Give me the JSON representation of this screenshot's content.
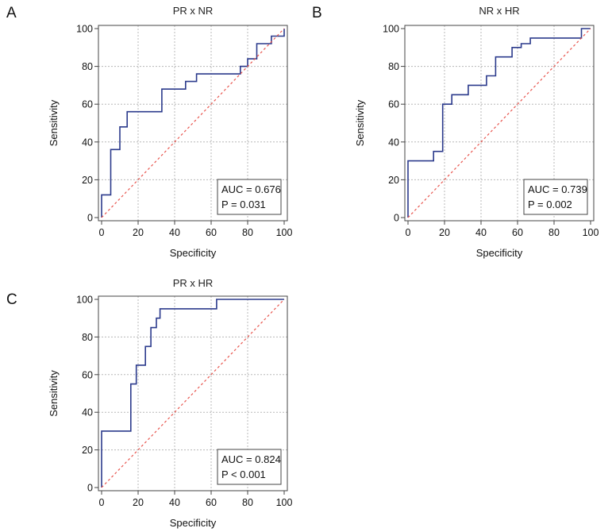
{
  "chart_data": [
    {
      "panel": "A",
      "type": "line",
      "title": "PR x NR",
      "xlabel": "Specificity",
      "ylabel": "Sensitivity",
      "xlim": [
        0,
        100
      ],
      "ylim": [
        0,
        100
      ],
      "xticks": [
        "0",
        "20",
        "40",
        "60",
        "80",
        "100"
      ],
      "yticks": [
        "0",
        "20",
        "40",
        "60",
        "80",
        "100"
      ],
      "grid": true,
      "series": [
        {
          "type": "step",
          "x": [
            0,
            0,
            5,
            5,
            10,
            10,
            14,
            14,
            33,
            33,
            46,
            46,
            52,
            52,
            76,
            76,
            80,
            80,
            85,
            85,
            93,
            93,
            100,
            100
          ],
          "y": [
            0,
            12,
            12,
            36,
            36,
            48,
            48,
            56,
            56,
            68,
            68,
            72,
            72,
            76,
            76,
            80,
            80,
            84,
            84,
            92,
            92,
            96,
            96,
            100
          ]
        },
        {
          "type": "reference",
          "x": [
            0,
            100
          ],
          "y": [
            0,
            100
          ]
        }
      ],
      "annotation": {
        "auc": "AUC = 0.676",
        "p": "P = 0.031"
      }
    },
    {
      "panel": "B",
      "type": "line",
      "title": "NR x HR",
      "xlabel": "Specificity",
      "ylabel": "Sensitivity",
      "xlim": [
        0,
        100
      ],
      "ylim": [
        0,
        100
      ],
      "xticks": [
        "0",
        "20",
        "40",
        "60",
        "80",
        "100"
      ],
      "yticks": [
        "0",
        "20",
        "40",
        "60",
        "80",
        "100"
      ],
      "grid": true,
      "series": [
        {
          "type": "step",
          "x": [
            0,
            0,
            14,
            14,
            19,
            19,
            24,
            24,
            33,
            33,
            43,
            43,
            48,
            48,
            57,
            57,
            62,
            62,
            67,
            67,
            95,
            95,
            100
          ],
          "y": [
            0,
            30,
            30,
            35,
            35,
            60,
            60,
            65,
            65,
            70,
            70,
            75,
            75,
            85,
            85,
            90,
            90,
            92,
            92,
            95,
            95,
            100,
            100
          ]
        },
        {
          "type": "reference",
          "x": [
            0,
            100
          ],
          "y": [
            0,
            100
          ]
        }
      ],
      "annotation": {
        "auc": "AUC = 0.739",
        "p": "P = 0.002"
      }
    },
    {
      "panel": "C",
      "type": "line",
      "title": "PR x HR",
      "xlabel": "Specificity",
      "ylabel": "Sensitivity",
      "xlim": [
        0,
        100
      ],
      "ylim": [
        0,
        100
      ],
      "xticks": [
        "0",
        "20",
        "40",
        "60",
        "80",
        "100"
      ],
      "yticks": [
        "0",
        "20",
        "40",
        "60",
        "80",
        "100"
      ],
      "grid": true,
      "series": [
        {
          "type": "step",
          "x": [
            0,
            0,
            16,
            16,
            19,
            19,
            24,
            24,
            27,
            27,
            30,
            30,
            32,
            32,
            63,
            63,
            100
          ],
          "y": [
            0,
            30,
            30,
            55,
            55,
            65,
            65,
            75,
            75,
            85,
            85,
            90,
            90,
            95,
            95,
            100,
            100
          ]
        },
        {
          "type": "reference",
          "x": [
            0,
            100
          ],
          "y": [
            0,
            100
          ]
        }
      ],
      "annotation": {
        "auc": "AUC = 0.824",
        "p": "P < 0.001"
      }
    }
  ],
  "colors": {
    "roc": "#2b3a8c",
    "reference": "#e8554e",
    "grid": "#b8b8b8",
    "axis": "#444444",
    "box_border": "#444444"
  }
}
